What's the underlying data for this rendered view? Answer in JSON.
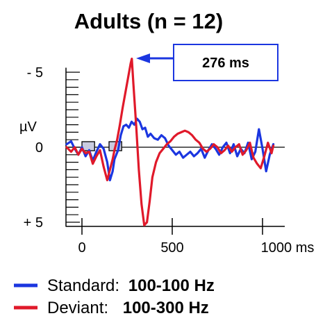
{
  "chart_data": {
    "type": "line",
    "title": "Adults (n = 12)",
    "xlabel": "",
    "ylabel": "µV",
    "x_unit": "ms",
    "xlim": [
      -90,
      1130
    ],
    "ylim": [
      6.2,
      -7
    ],
    "y_inverted": true,
    "x_ticks": [
      {
        "value": 0,
        "label": "0"
      },
      {
        "value": 500,
        "label": "500"
      },
      {
        "value": 1000,
        "label": "1000 ms"
      }
    ],
    "y_ticks": [
      {
        "value": -5,
        "label": "- 5"
      },
      {
        "value": 0,
        "label": "0"
      },
      {
        "value": 5,
        "label": "+ 5"
      }
    ],
    "y_unit_label": "µV",
    "stimulus_markers": [
      {
        "start": 0,
        "end": 70
      },
      {
        "start": 150,
        "end": 220
      }
    ],
    "annotation": {
      "text": "276 ms",
      "points_to": {
        "x": 276,
        "y": -5.9
      }
    },
    "series": [
      {
        "name": "Standard",
        "color": "#1b36e0",
        "x": [
          -85,
          -60,
          -40,
          -20,
          0,
          20,
          40,
          60,
          80,
          100,
          120,
          140,
          155,
          170,
          180,
          200,
          215,
          230,
          245,
          260,
          275,
          290,
          305,
          320,
          335,
          350,
          365,
          380,
          400,
          420,
          440,
          460,
          480,
          500,
          520,
          540,
          560,
          580,
          600,
          620,
          640,
          660,
          680,
          700,
          720,
          740,
          760,
          780,
          800,
          820,
          840,
          860,
          880,
          900,
          920,
          940,
          960,
          980,
          1000,
          1020,
          1040,
          1060
        ],
        "y": [
          -0.2,
          -0.4,
          0.1,
          0.5,
          0.0,
          0.6,
          0.2,
          0.9,
          0.3,
          -0.2,
          0.1,
          1.0,
          2.2,
          1.6,
          0.8,
          0.2,
          -0.8,
          -1.4,
          -1.5,
          -1.3,
          -1.7,
          -1.5,
          -1.9,
          -1.7,
          -1.2,
          -1.3,
          -0.7,
          -0.9,
          -0.6,
          -0.5,
          -0.8,
          -0.6,
          -0.1,
          0.2,
          0.5,
          0.3,
          0.7,
          0.5,
          0.3,
          0.6,
          0.4,
          0.1,
          0.7,
          0.2,
          -0.2,
          0.1,
          0.5,
          0.0,
          -0.3,
          0.4,
          -0.2,
          0.6,
          0.1,
          0.4,
          -0.3,
          0.8,
          0.3,
          -1.2,
          0.1,
          1.6,
          0.5,
          -0.2
        ]
      },
      {
        "name": "Deviant",
        "color": "#e0192a",
        "x": [
          -85,
          -60,
          -40,
          -20,
          0,
          20,
          40,
          60,
          80,
          100,
          120,
          140,
          155,
          170,
          180,
          195,
          210,
          225,
          240,
          255,
          270,
          276,
          285,
          300,
          315,
          330,
          345,
          360,
          375,
          390,
          410,
          430,
          450,
          470,
          490,
          510,
          530,
          550,
          570,
          590,
          610,
          630,
          650,
          670,
          690,
          710,
          730,
          750,
          770,
          790,
          810,
          830,
          850,
          870,
          890,
          910,
          930,
          950,
          970,
          990,
          1010,
          1030,
          1050,
          1060
        ],
        "y": [
          0.0,
          0.3,
          0.0,
          0.5,
          0.1,
          0.4,
          0.3,
          1.1,
          0.6,
          0.2,
          1.3,
          2.2,
          1.5,
          0.8,
          0.2,
          -0.5,
          -1.5,
          -2.6,
          -3.6,
          -4.6,
          -5.6,
          -5.9,
          -4.2,
          -1.5,
          1.5,
          3.8,
          5.2,
          5.0,
          3.6,
          2.0,
          1.0,
          0.4,
          0.1,
          -0.2,
          -0.4,
          -0.7,
          -0.9,
          -1.0,
          -1.1,
          -1.0,
          -0.8,
          -0.5,
          -0.3,
          0.1,
          0.3,
          0.1,
          -0.2,
          0.0,
          0.4,
          0.2,
          -0.1,
          0.3,
          0.0,
          -0.2,
          0.5,
          0.2,
          -0.3,
          0.7,
          1.1,
          1.4,
          0.6,
          -0.3,
          0.4,
          -0.1
        ]
      }
    ],
    "legend": {
      "placement": "bottom-left",
      "entries": [
        {
          "name": "Standard:",
          "value": "100-100 Hz",
          "color": "#1b36e0"
        },
        {
          "name": "Deviant:",
          "value": "100-300 Hz",
          "color": "#e0192a"
        }
      ]
    },
    "grid": false
  }
}
